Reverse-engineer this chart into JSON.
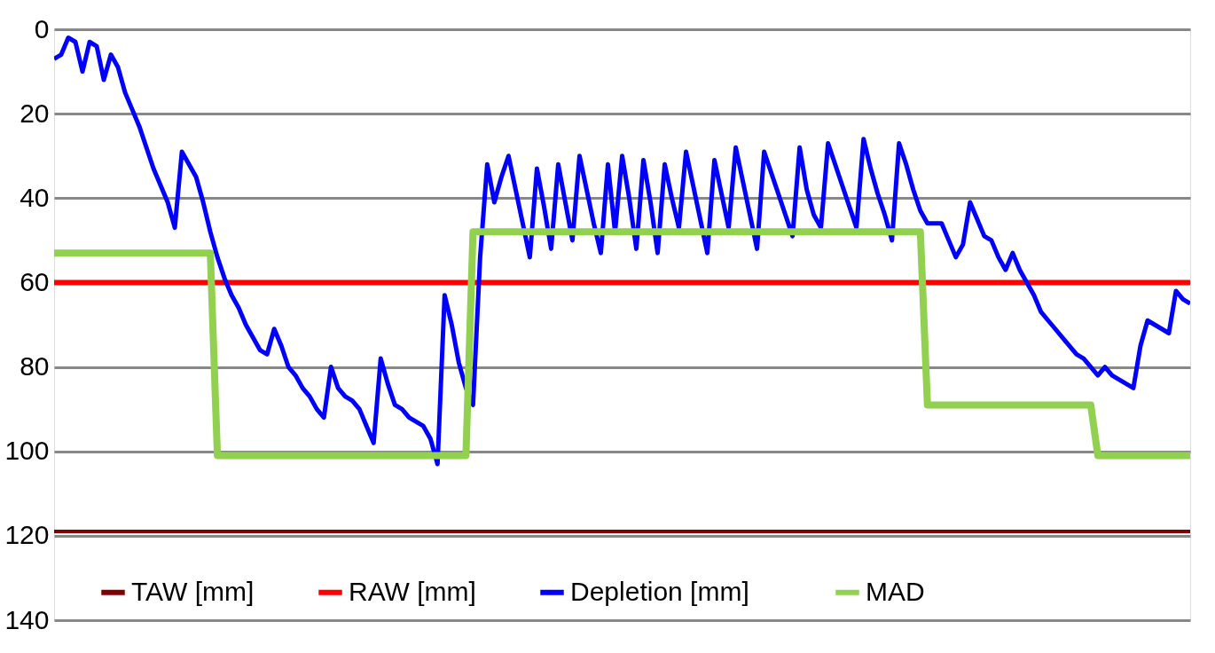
{
  "chart_data": {
    "type": "line",
    "categories": [
      null,
      null,
      null,
      null,
      null,
      null,
      null,
      null,
      null,
      null,
      null,
      null,
      null,
      null,
      null,
      null,
      null,
      null,
      null,
      null,
      null,
      null,
      null,
      null,
      null,
      null,
      null,
      null,
      null,
      null,
      null,
      null,
      null,
      null,
      null,
      null,
      null,
      null,
      null,
      null,
      null,
      null,
      null,
      null,
      null,
      null,
      null,
      null,
      null,
      null,
      null,
      null,
      null,
      null,
      null,
      null,
      null,
      null,
      null,
      null,
      null,
      null,
      null,
      null,
      null,
      null,
      null,
      null,
      null,
      null,
      null,
      null,
      null,
      null,
      null,
      null,
      null,
      null,
      null,
      null,
      null,
      null,
      null,
      null,
      null,
      null,
      null,
      null,
      null,
      null,
      null,
      null,
      null,
      null,
      null,
      null,
      null,
      null,
      null,
      null,
      null,
      null,
      null,
      null,
      null,
      null,
      null,
      null,
      null,
      null,
      null,
      null,
      null,
      null,
      null,
      null,
      null,
      null,
      null,
      null,
      null,
      null,
      null,
      null,
      null,
      null,
      null,
      null,
      null,
      null,
      null,
      null,
      null,
      null,
      null,
      null,
      null,
      null,
      null,
      null,
      null,
      null,
      null,
      null,
      null,
      null,
      null,
      null,
      null,
      null,
      null,
      null,
      null,
      null,
      null,
      null,
      null,
      null,
      null,
      null,
      null
    ],
    "ylim": [
      140,
      0
    ],
    "yticks": [
      0,
      20,
      40,
      60,
      80,
      100,
      120,
      140
    ],
    "grid": "y",
    "legend": "bottom",
    "marker": "none",
    "line_style": "solid",
    "series": [
      {
        "name": "TAW [mm]",
        "color": "#800000",
        "values": [
          119,
          119,
          119,
          119,
          119,
          119,
          119,
          119,
          119,
          119,
          119,
          119,
          119,
          119,
          119,
          119,
          119,
          119,
          119,
          119,
          119,
          119,
          119,
          119,
          119,
          119,
          119,
          119,
          119,
          119,
          119,
          119,
          119,
          119,
          119,
          119,
          119,
          119,
          119,
          119,
          119,
          119,
          119,
          119,
          119,
          119,
          119,
          119,
          119,
          119,
          119,
          119,
          119,
          119,
          119,
          119,
          119,
          119,
          119,
          119,
          119,
          119,
          119,
          119,
          119,
          119,
          119,
          119,
          119,
          119,
          119,
          119,
          119,
          119,
          119,
          119,
          119,
          119,
          119,
          119,
          119,
          119,
          119,
          119,
          119,
          119,
          119,
          119,
          119,
          119,
          119,
          119,
          119,
          119,
          119,
          119,
          119,
          119,
          119,
          119,
          119,
          119,
          119,
          119,
          119,
          119,
          119,
          119,
          119,
          119,
          119,
          119,
          119,
          119,
          119,
          119,
          119,
          119,
          119,
          119,
          119,
          119,
          119,
          119,
          119,
          119,
          119,
          119,
          119,
          119,
          119,
          119,
          119,
          119,
          119,
          119,
          119,
          119,
          119,
          119,
          119,
          119,
          119,
          119,
          119,
          119,
          119,
          119,
          119,
          119,
          119,
          119,
          119,
          119,
          119,
          119,
          119,
          119,
          119,
          119,
          119
        ]
      },
      {
        "name": "RAW [mm]",
        "color": "#ff0000",
        "values": [
          60,
          60,
          60,
          60,
          60,
          60,
          60,
          60,
          60,
          60,
          60,
          60,
          60,
          60,
          60,
          60,
          60,
          60,
          60,
          60,
          60,
          60,
          60,
          60,
          60,
          60,
          60,
          60,
          60,
          60,
          60,
          60,
          60,
          60,
          60,
          60,
          60,
          60,
          60,
          60,
          60,
          60,
          60,
          60,
          60,
          60,
          60,
          60,
          60,
          60,
          60,
          60,
          60,
          60,
          60,
          60,
          60,
          60,
          60,
          60,
          60,
          60,
          60,
          60,
          60,
          60,
          60,
          60,
          60,
          60,
          60,
          60,
          60,
          60,
          60,
          60,
          60,
          60,
          60,
          60,
          60,
          60,
          60,
          60,
          60,
          60,
          60,
          60,
          60,
          60,
          60,
          60,
          60,
          60,
          60,
          60,
          60,
          60,
          60,
          60,
          60,
          60,
          60,
          60,
          60,
          60,
          60,
          60,
          60,
          60,
          60,
          60,
          60,
          60,
          60,
          60,
          60,
          60,
          60,
          60,
          60,
          60,
          60,
          60,
          60,
          60,
          60,
          60,
          60,
          60,
          60,
          60,
          60,
          60,
          60,
          60,
          60,
          60,
          60,
          60,
          60,
          60,
          60,
          60,
          60,
          60,
          60,
          60,
          60,
          60,
          60,
          60,
          60,
          60,
          60,
          60,
          60,
          60,
          60,
          60,
          60
        ]
      },
      {
        "name": "Depletion    [mm]",
        "color": "#0000ff",
        "values": [
          7,
          6,
          2,
          3,
          10,
          3,
          4,
          12,
          6,
          9,
          15,
          19,
          23,
          28,
          33,
          37,
          41,
          47,
          29,
          32,
          35,
          41,
          48,
          54,
          59,
          63,
          66,
          70,
          73,
          76,
          77,
          71,
          75,
          80,
          82,
          85,
          87,
          90,
          92,
          80,
          85,
          87,
          88,
          90,
          94,
          98,
          78,
          84,
          89,
          90,
          92,
          93,
          94,
          97,
          103,
          63,
          70,
          79,
          85,
          89,
          54,
          32,
          41,
          35,
          30,
          38,
          46,
          54,
          33,
          42,
          52,
          32,
          41,
          50,
          30,
          38,
          46,
          53,
          32,
          48,
          30,
          40,
          52,
          31,
          41,
          53,
          32,
          40,
          47,
          29,
          37,
          45,
          53,
          31,
          39,
          47,
          28,
          36,
          44,
          52,
          29,
          34,
          39,
          44,
          49,
          28,
          38,
          44,
          47,
          27,
          32,
          37,
          42,
          47,
          26,
          33,
          39,
          44,
          50,
          27,
          32,
          38,
          43,
          46,
          46,
          46,
          50,
          54,
          51,
          41,
          45,
          49,
          50,
          54,
          57,
          53,
          57,
          60,
          63,
          67,
          69,
          71,
          73,
          75,
          77,
          78,
          80,
          82,
          80,
          82,
          83,
          84,
          85,
          75,
          69,
          70,
          71,
          72,
          62,
          64,
          65
        ]
      },
      {
        "name": "MAD",
        "color": "#92d050",
        "values": [
          53,
          53,
          53,
          53,
          53,
          53,
          53,
          53,
          53,
          53,
          53,
          53,
          53,
          53,
          53,
          53,
          53,
          53,
          53,
          53,
          53,
          53,
          53,
          101,
          101,
          101,
          101,
          101,
          101,
          101,
          101,
          101,
          101,
          101,
          101,
          101,
          101,
          101,
          101,
          101,
          101,
          101,
          101,
          101,
          101,
          101,
          101,
          101,
          101,
          101,
          101,
          101,
          101,
          101,
          101,
          101,
          101,
          101,
          101,
          48,
          48,
          48,
          48,
          48,
          48,
          48,
          48,
          48,
          48,
          48,
          48,
          48,
          48,
          48,
          48,
          48,
          48,
          48,
          48,
          48,
          48,
          48,
          48,
          48,
          48,
          48,
          48,
          48,
          48,
          48,
          48,
          48,
          48,
          48,
          48,
          48,
          48,
          48,
          48,
          48,
          48,
          48,
          48,
          48,
          48,
          48,
          48,
          48,
          48,
          48,
          48,
          48,
          48,
          48,
          48,
          48,
          48,
          48,
          48,
          48,
          48,
          48,
          48,
          89,
          89,
          89,
          89,
          89,
          89,
          89,
          89,
          89,
          89,
          89,
          89,
          89,
          89,
          89,
          89,
          89,
          89,
          89,
          89,
          89,
          89,
          89,
          89,
          101,
          101,
          101,
          101,
          101,
          101,
          101,
          101,
          101,
          101,
          101,
          101,
          101,
          101
        ]
      }
    ]
  }
}
